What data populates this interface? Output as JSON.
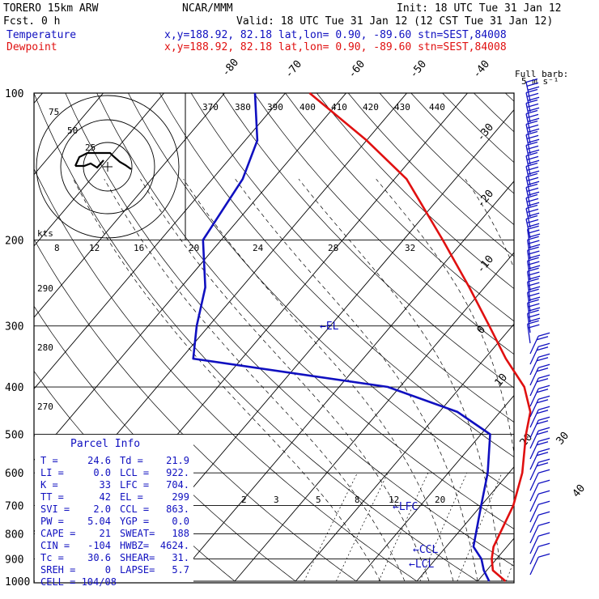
{
  "header": {
    "model": "TORERO  15km ARW",
    "org": "NCAR/MMM",
    "init": "Init: 18 UTC Tue 31 Jan 12",
    "fcst": "Fcst.    0 h",
    "valid": "Valid: 18 UTC Tue 31 Jan 12 (12 CST Tue 31 Jan 12)",
    "temp_label": "Temperature",
    "dew_label": "Dewpoint",
    "loc_line": "x,y=188.92, 82.18   lat,lon=  0.90, -89.60  stn=SEST,84008",
    "barb_title": "Full barb:",
    "barb_units": "5 m s⁻¹"
  },
  "colors": {
    "temperature": "#e01010",
    "dewpoint": "#1010c0",
    "lines": "#000000"
  },
  "chart_data": {
    "type": "line",
    "title": "",
    "yscale": "log",
    "pressure_levels": [
      100,
      200,
      300,
      400,
      500,
      600,
      700,
      800,
      900,
      1000
    ],
    "series": [
      {
        "name": "Temperature",
        "points": [
          [
            1000,
            24.6
          ],
          [
            950,
            21
          ],
          [
            900,
            19.2
          ],
          [
            850,
            17.8
          ],
          [
            700,
            15.3
          ],
          [
            600,
            12.2
          ],
          [
            500,
            7.4
          ],
          [
            450,
            5.0
          ],
          [
            400,
            0.5
          ],
          [
            350,
            -6.5
          ],
          [
            300,
            -13.8
          ],
          [
            250,
            -22.5
          ],
          [
            200,
            -33.5
          ],
          [
            150,
            -48
          ],
          [
            125,
            -60
          ],
          [
            100,
            -76
          ]
        ]
      },
      {
        "name": "Dewpoint",
        "points": [
          [
            1000,
            21.9
          ],
          [
            950,
            19.5
          ],
          [
            900,
            17.5
          ],
          [
            850,
            14.5
          ],
          [
            700,
            10.0
          ],
          [
            600,
            6.5
          ],
          [
            500,
            1.5
          ],
          [
            450,
            -7
          ],
          [
            400,
            -22
          ],
          [
            350,
            -58
          ],
          [
            300,
            -62
          ],
          [
            250,
            -66
          ],
          [
            200,
            -73
          ],
          [
            150,
            -75
          ],
          [
            125,
            -78
          ],
          [
            100,
            -85
          ]
        ]
      }
    ],
    "skewed_temp_labels": [
      "-80",
      "-70",
      "-60",
      "-50",
      "-40",
      "-30",
      "-20",
      "-10",
      "0",
      "10",
      "20",
      "30",
      "40"
    ],
    "theta_labels": [
      "370",
      "380",
      "390",
      "400",
      "410",
      "420",
      "430",
      "440"
    ],
    "upper_axis_labels": [
      "8",
      "12",
      "16",
      "20",
      "24",
      "28",
      "32"
    ],
    "mixing_ratio_labels": [
      "2",
      "3",
      "5",
      "8",
      "12",
      "20"
    ],
    "lower_left_labels": [
      "290",
      "280",
      "270"
    ],
    "annotations": [
      "EL",
      "LFC",
      "CCL",
      "LCL"
    ],
    "hodograph": {
      "ring_labels": [
        "75",
        "50",
        "25"
      ],
      "units_label": "kts"
    }
  },
  "parcel_info": {
    "title": "Parcel Info",
    "rows": [
      [
        "T  =",
        "24.6",
        "Td =",
        "21.9"
      ],
      [
        "LI =",
        "0.0",
        "LCL =",
        "922."
      ],
      [
        "K  =",
        "33",
        "LFC =",
        "704."
      ],
      [
        "TT =",
        "42",
        "EL  =",
        "299"
      ],
      [
        "SVI =",
        "2.0",
        "CCL =",
        "863."
      ],
      [
        "PW =",
        "5.04",
        "YGP =",
        "0.0"
      ],
      [
        "CAPE =",
        "21",
        "SWEAT=",
        "188"
      ],
      [
        "CIN =",
        "-104",
        "HWBZ=",
        "4624."
      ],
      [
        "Tc =",
        "30.6",
        "SHEAR=",
        "31."
      ],
      [
        "SREH =",
        "0",
        "LAPSE=",
        "5.7"
      ]
    ],
    "cell": "CELL = 104/08"
  }
}
